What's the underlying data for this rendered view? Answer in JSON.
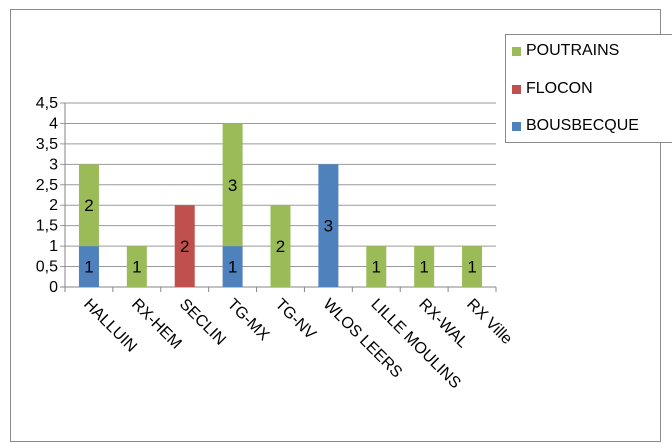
{
  "chart_data": {
    "type": "bar",
    "stacked": true,
    "title": "",
    "xlabel": "",
    "ylabel": "",
    "ylim": [
      0,
      4.5
    ],
    "y_ticks": [
      "0",
      "0,5",
      "1",
      "1,5",
      "2",
      "2,5",
      "3",
      "3,5",
      "4",
      "4,5"
    ],
    "grid": true,
    "legend_position": "top-right",
    "categories": [
      "HALLUIN",
      "RX-HEM",
      "SECLIN",
      "TG-MX",
      "TG-NV",
      "WLOS LEERS",
      "LILLE MOULINS",
      "RX-WAL",
      "RX Ville"
    ],
    "series": [
      {
        "name": "BOUSBECQUE",
        "color": "#4f81bd",
        "values": [
          1,
          0,
          0,
          1,
          0,
          3,
          0,
          0,
          0
        ]
      },
      {
        "name": "FLOCON",
        "color": "#c0504d",
        "values": [
          0,
          0,
          2,
          0,
          0,
          0,
          0,
          0,
          0
        ]
      },
      {
        "name": "POUTRAINS",
        "color": "#9bbb59",
        "values": [
          2,
          1,
          0,
          3,
          2,
          0,
          1,
          1,
          1
        ]
      }
    ],
    "legend_order": [
      "POUTRAINS",
      "FLOCON",
      "BOUSBECQUE"
    ]
  }
}
